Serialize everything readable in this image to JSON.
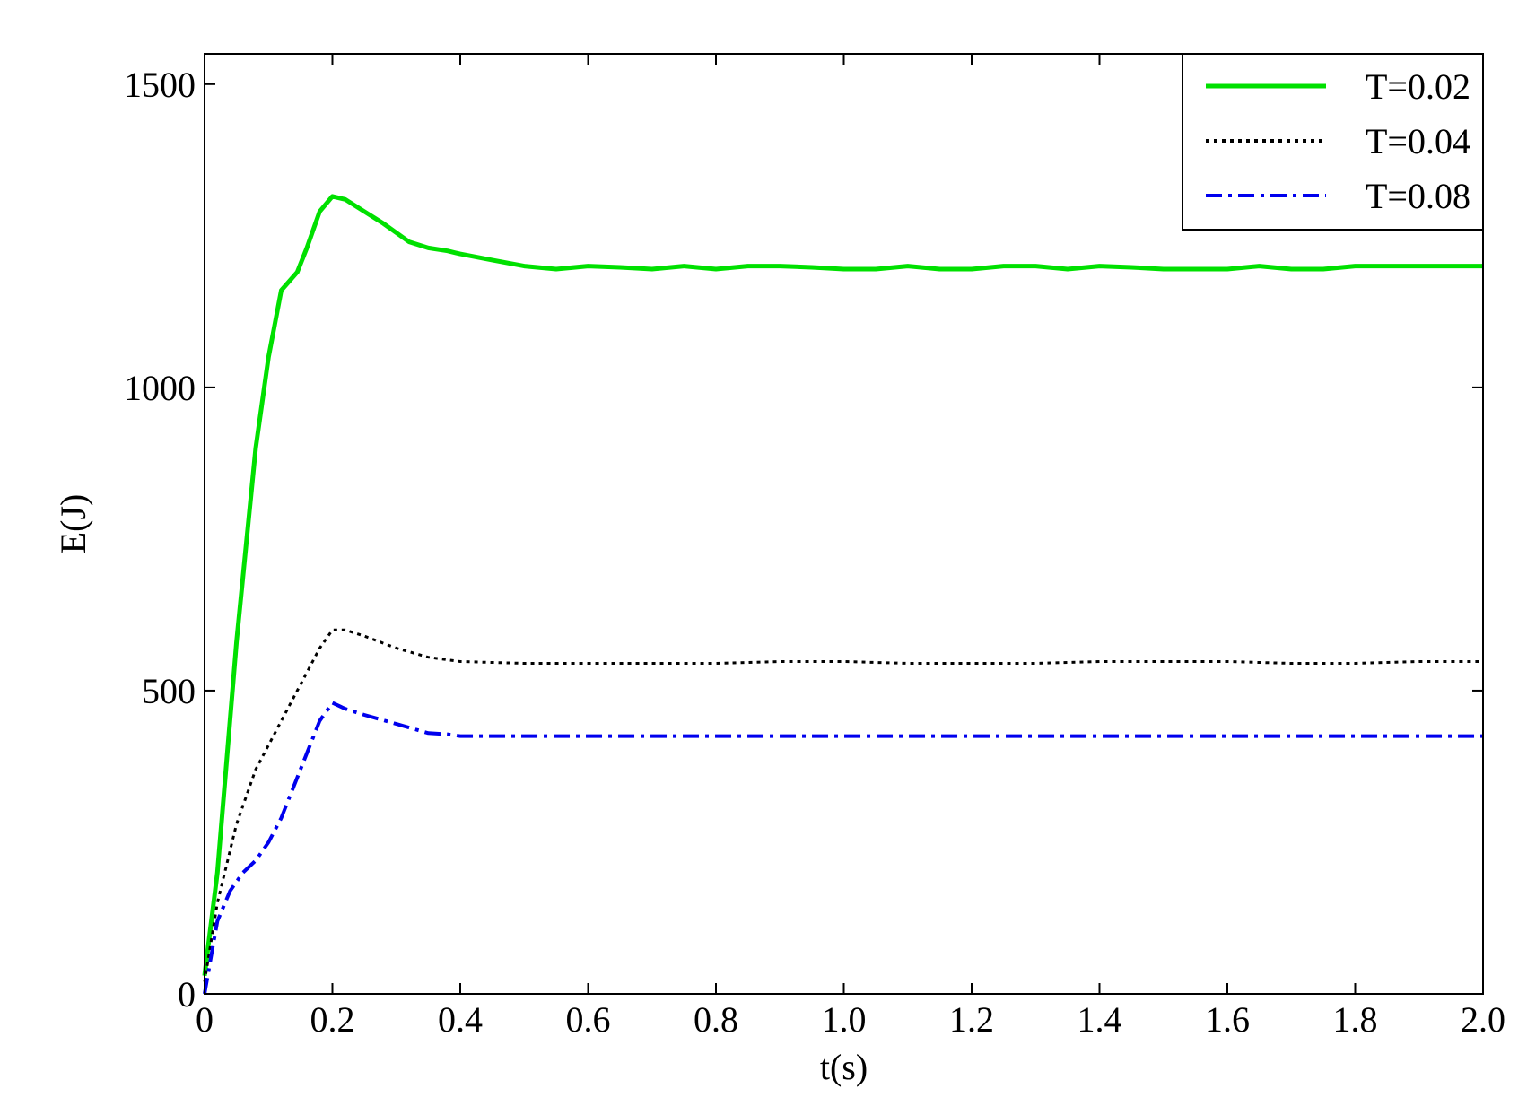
{
  "chart_data": {
    "type": "line",
    "title": "",
    "xlabel": "t(s)",
    "ylabel": "E(J)",
    "xlim": [
      0,
      2.0
    ],
    "ylim": [
      0,
      1550
    ],
    "xticks": [
      0,
      0.2,
      0.4,
      0.6,
      0.8,
      1.0,
      1.2,
      1.4,
      1.6,
      1.8,
      2.0
    ],
    "xtick_labels": [
      "0",
      "0.2",
      "0.4",
      "0.6",
      "0.8",
      "1.0",
      "1.2",
      "1.4",
      "1.6",
      "1.8",
      "2.0"
    ],
    "yticks": [
      0,
      500,
      1000,
      1500
    ],
    "ytick_labels": [
      "0",
      "500",
      "1000",
      "1500"
    ],
    "grid": false,
    "legend_position": "top-right",
    "series": [
      {
        "name": "T=0.02",
        "color": "#00e000",
        "style": "solid",
        "x": [
          0,
          0.02,
          0.05,
          0.08,
          0.1,
          0.12,
          0.145,
          0.16,
          0.18,
          0.2,
          0.22,
          0.25,
          0.28,
          0.3,
          0.32,
          0.35,
          0.38,
          0.4,
          0.45,
          0.5,
          0.55,
          0.6,
          0.65,
          0.7,
          0.75,
          0.8,
          0.85,
          0.9,
          0.95,
          1.0,
          1.05,
          1.1,
          1.15,
          1.2,
          1.25,
          1.3,
          1.35,
          1.4,
          1.45,
          1.5,
          1.55,
          1.6,
          1.65,
          1.7,
          1.75,
          1.8,
          1.85,
          1.9,
          1.95,
          2.0
        ],
        "y": [
          30,
          200,
          580,
          900,
          1050,
          1160,
          1190,
          1230,
          1290,
          1315,
          1310,
          1290,
          1270,
          1255,
          1240,
          1230,
          1225,
          1220,
          1210,
          1200,
          1195,
          1200,
          1198,
          1195,
          1200,
          1195,
          1200,
          1200,
          1198,
          1195,
          1195,
          1200,
          1195,
          1195,
          1200,
          1200,
          1195,
          1200,
          1198,
          1195,
          1195,
          1195,
          1200,
          1195,
          1195,
          1200,
          1200,
          1200,
          1200,
          1200
        ]
      },
      {
        "name": "T=0.04",
        "color": "#000000",
        "style": "dotted",
        "x": [
          0,
          0.02,
          0.05,
          0.08,
          0.1,
          0.12,
          0.15,
          0.18,
          0.2,
          0.22,
          0.25,
          0.3,
          0.35,
          0.4,
          0.5,
          0.6,
          0.7,
          0.8,
          0.9,
          1.0,
          1.1,
          1.2,
          1.3,
          1.4,
          1.5,
          1.6,
          1.7,
          1.8,
          1.9,
          2.0
        ],
        "y": [
          20,
          150,
          280,
          370,
          410,
          450,
          510,
          570,
          600,
          600,
          590,
          570,
          555,
          548,
          545,
          545,
          545,
          545,
          548,
          548,
          545,
          545,
          545,
          548,
          548,
          548,
          545,
          545,
          548,
          548
        ]
      },
      {
        "name": "T=0.08",
        "color": "#0000ee",
        "style": "dashdot",
        "x": [
          0,
          0.01,
          0.02,
          0.04,
          0.06,
          0.08,
          0.1,
          0.12,
          0.15,
          0.18,
          0.2,
          0.22,
          0.25,
          0.3,
          0.35,
          0.38,
          0.4,
          0.5,
          0.6,
          0.8,
          1.0,
          1.2,
          1.4,
          1.6,
          1.8,
          2.0
        ],
        "y": [
          0,
          60,
          120,
          170,
          200,
          220,
          250,
          290,
          370,
          450,
          480,
          470,
          460,
          445,
          430,
          428,
          425,
          425,
          425,
          425,
          425,
          425,
          425,
          425,
          425,
          425
        ]
      }
    ]
  }
}
